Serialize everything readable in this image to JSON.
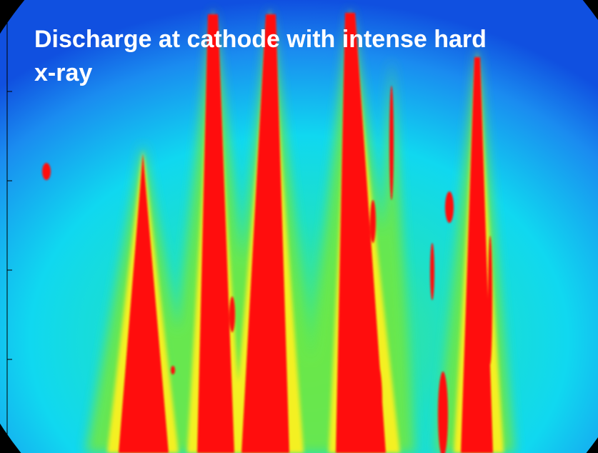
{
  "image": {
    "title_lines": [
      "Discharge at cathode with intense hard",
      "x-ray"
    ]
  }
}
